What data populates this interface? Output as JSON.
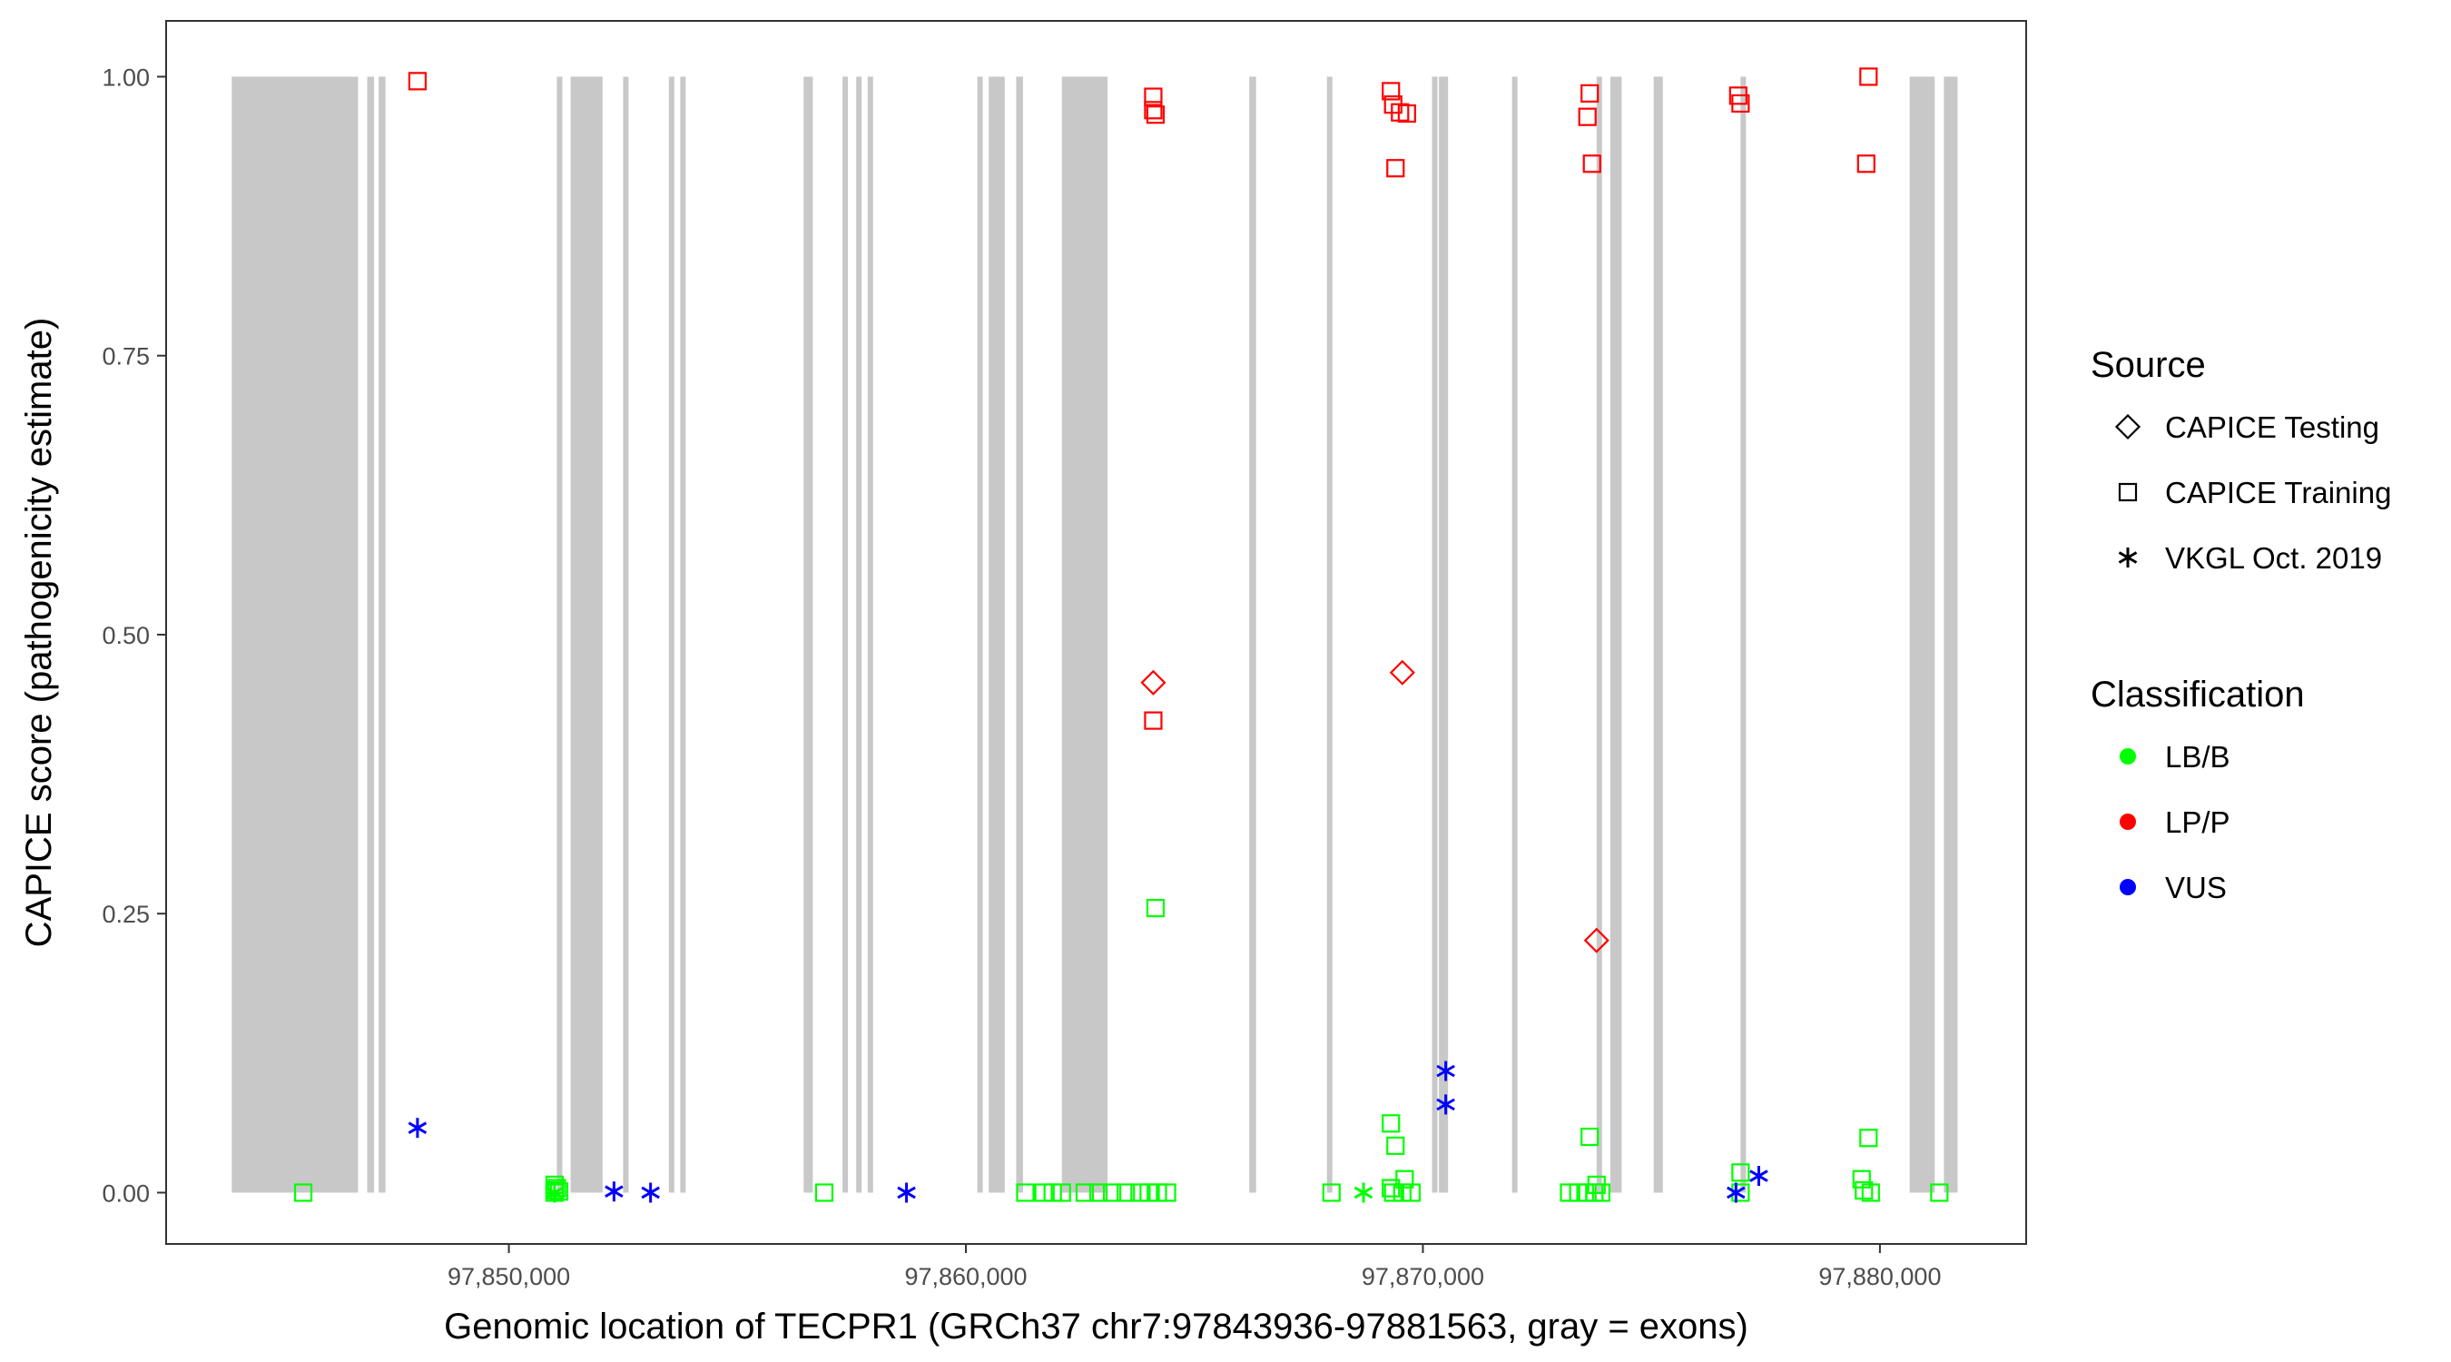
{
  "chart_data": {
    "type": "scatter",
    "xlabel": "Genomic location of TECPR1 (GRCh37 chr7:97843936-97881563, gray = exons)",
    "ylabel": "CAPICE score (pathogenicity estimate)",
    "xlim": [
      97842500,
      97883200
    ],
    "ylim": [
      -0.046,
      1.05
    ],
    "x_ticks": [
      97850000,
      97860000,
      97870000,
      97880000
    ],
    "x_tick_labels": [
      "97,850,000",
      "97,860,000",
      "97,870,000",
      "97,880,000"
    ],
    "y_ticks": [
      0,
      0.25,
      0.5,
      0.75,
      1
    ],
    "y_tick_labels": [
      "0.00",
      "0.25",
      "0.50",
      "0.75",
      "1.00"
    ],
    "grid": false,
    "legend_position": "right",
    "exon_color": "#c8c8c8",
    "exons": [
      [
        97843936,
        97846700
      ],
      [
        97846900,
        97847050
      ],
      [
        97847150,
        97847300
      ],
      [
        97851050,
        97851150
      ],
      [
        97851350,
        97852050
      ],
      [
        97852500,
        97852600
      ],
      [
        97853500,
        97853600
      ],
      [
        97853750,
        97853850
      ],
      [
        97856450,
        97856650
      ],
      [
        97857300,
        97857400
      ],
      [
        97857600,
        97857700
      ],
      [
        97857850,
        97857950
      ],
      [
        97860250,
        97860350
      ],
      [
        97860500,
        97860850
      ],
      [
        97861100,
        97861250
      ],
      [
        97862100,
        97863100
      ],
      [
        97866200,
        97866350
      ],
      [
        97867900,
        97868000
      ],
      [
        97870200,
        97870300
      ],
      [
        97870350,
        97870550
      ],
      [
        97871950,
        97872050
      ],
      [
        97873800,
        97873900
      ],
      [
        97874100,
        97874350
      ],
      [
        97875050,
        97875250
      ],
      [
        97876950,
        97877050
      ],
      [
        97880650,
        97881200
      ],
      [
        97881400,
        97881700
      ]
    ],
    "legends": [
      {
        "title": "Source",
        "items": [
          {
            "label": "CAPICE Testing",
            "shape": "diamond"
          },
          {
            "label": "CAPICE Training",
            "shape": "square"
          },
          {
            "label": "VKGL Oct. 2019",
            "shape": "star"
          }
        ]
      },
      {
        "title": "Classification",
        "items": [
          {
            "label": "LB/B",
            "color": "#00ff00"
          },
          {
            "label": "LP/P",
            "color": "#ff0000"
          },
          {
            "label": "VUS",
            "color": "#0000ff"
          }
        ]
      }
    ],
    "series": [
      {
        "shape": "square",
        "color": "#ff0000",
        "points": [
          [
            97848000,
            0.996
          ],
          [
            97864100,
            0.982
          ],
          [
            97864100,
            0.97
          ],
          [
            97864150,
            0.966
          ],
          [
            97864100,
            0.423
          ],
          [
            97869300,
            0.987
          ],
          [
            97869350,
            0.975
          ],
          [
            97869500,
            0.968
          ],
          [
            97869650,
            0.967
          ],
          [
            97869400,
            0.918
          ],
          [
            97873650,
            0.985
          ],
          [
            97873600,
            0.964
          ],
          [
            97873700,
            0.922
          ],
          [
            97876900,
            0.983
          ],
          [
            97876950,
            0.976
          ],
          [
            97879750,
            1.0
          ],
          [
            97879700,
            0.922
          ]
        ]
      },
      {
        "shape": "diamond",
        "color": "#ff0000",
        "points": [
          [
            97864100,
            0.457
          ],
          [
            97869550,
            0.466
          ],
          [
            97873800,
            0.226
          ]
        ]
      },
      {
        "shape": "square",
        "color": "#00ff00",
        "points": [
          [
            97845500,
            0.0
          ],
          [
            97851000,
            0.007
          ],
          [
            97851050,
            0.004
          ],
          [
            97851000,
            0.002
          ],
          [
            97851100,
            0.001
          ],
          [
            97851000,
            0.0
          ],
          [
            97856900,
            0.0
          ],
          [
            97861300,
            0.0
          ],
          [
            97861700,
            0.0
          ],
          [
            97861900,
            0.0
          ],
          [
            97862100,
            0.0
          ],
          [
            97862600,
            0.0
          ],
          [
            97862900,
            0.0
          ],
          [
            97863200,
            0.0
          ],
          [
            97863500,
            0.0
          ],
          [
            97863800,
            0.0
          ],
          [
            97864000,
            0.0
          ],
          [
            97864200,
            0.0
          ],
          [
            97864400,
            0.0
          ],
          [
            97864150,
            0.255
          ],
          [
            97868000,
            0.0
          ],
          [
            97869300,
            0.062
          ],
          [
            97869400,
            0.042
          ],
          [
            97869600,
            0.012
          ],
          [
            97869300,
            0.004
          ],
          [
            97869350,
            0.0
          ],
          [
            97869550,
            0.0
          ],
          [
            97869750,
            0.0
          ],
          [
            97873200,
            0.0
          ],
          [
            97873400,
            0.0
          ],
          [
            97873600,
            0.0
          ],
          [
            97873750,
            0.0
          ],
          [
            97873900,
            0.0
          ],
          [
            97873800,
            0.007
          ],
          [
            97873650,
            0.05
          ],
          [
            97876950,
            0.018
          ],
          [
            97876950,
            0.0
          ],
          [
            97879600,
            0.012
          ],
          [
            97879650,
            0.002
          ],
          [
            97879800,
            0.0
          ],
          [
            97879750,
            0.049
          ],
          [
            97881300,
            0.0
          ]
        ]
      },
      {
        "shape": "star",
        "color": "#00ff00",
        "points": [
          [
            97851000,
            0.0
          ],
          [
            97868700,
            0.0
          ]
        ]
      },
      {
        "shape": "star",
        "color": "#0000ff",
        "points": [
          [
            97848000,
            0.058
          ],
          [
            97852300,
            0.001
          ],
          [
            97853100,
            0.0
          ],
          [
            97858700,
            0.0
          ],
          [
            97870500,
            0.109
          ],
          [
            97870500,
            0.079
          ],
          [
            97876850,
            0.0
          ],
          [
            97877350,
            0.015
          ]
        ]
      }
    ]
  }
}
